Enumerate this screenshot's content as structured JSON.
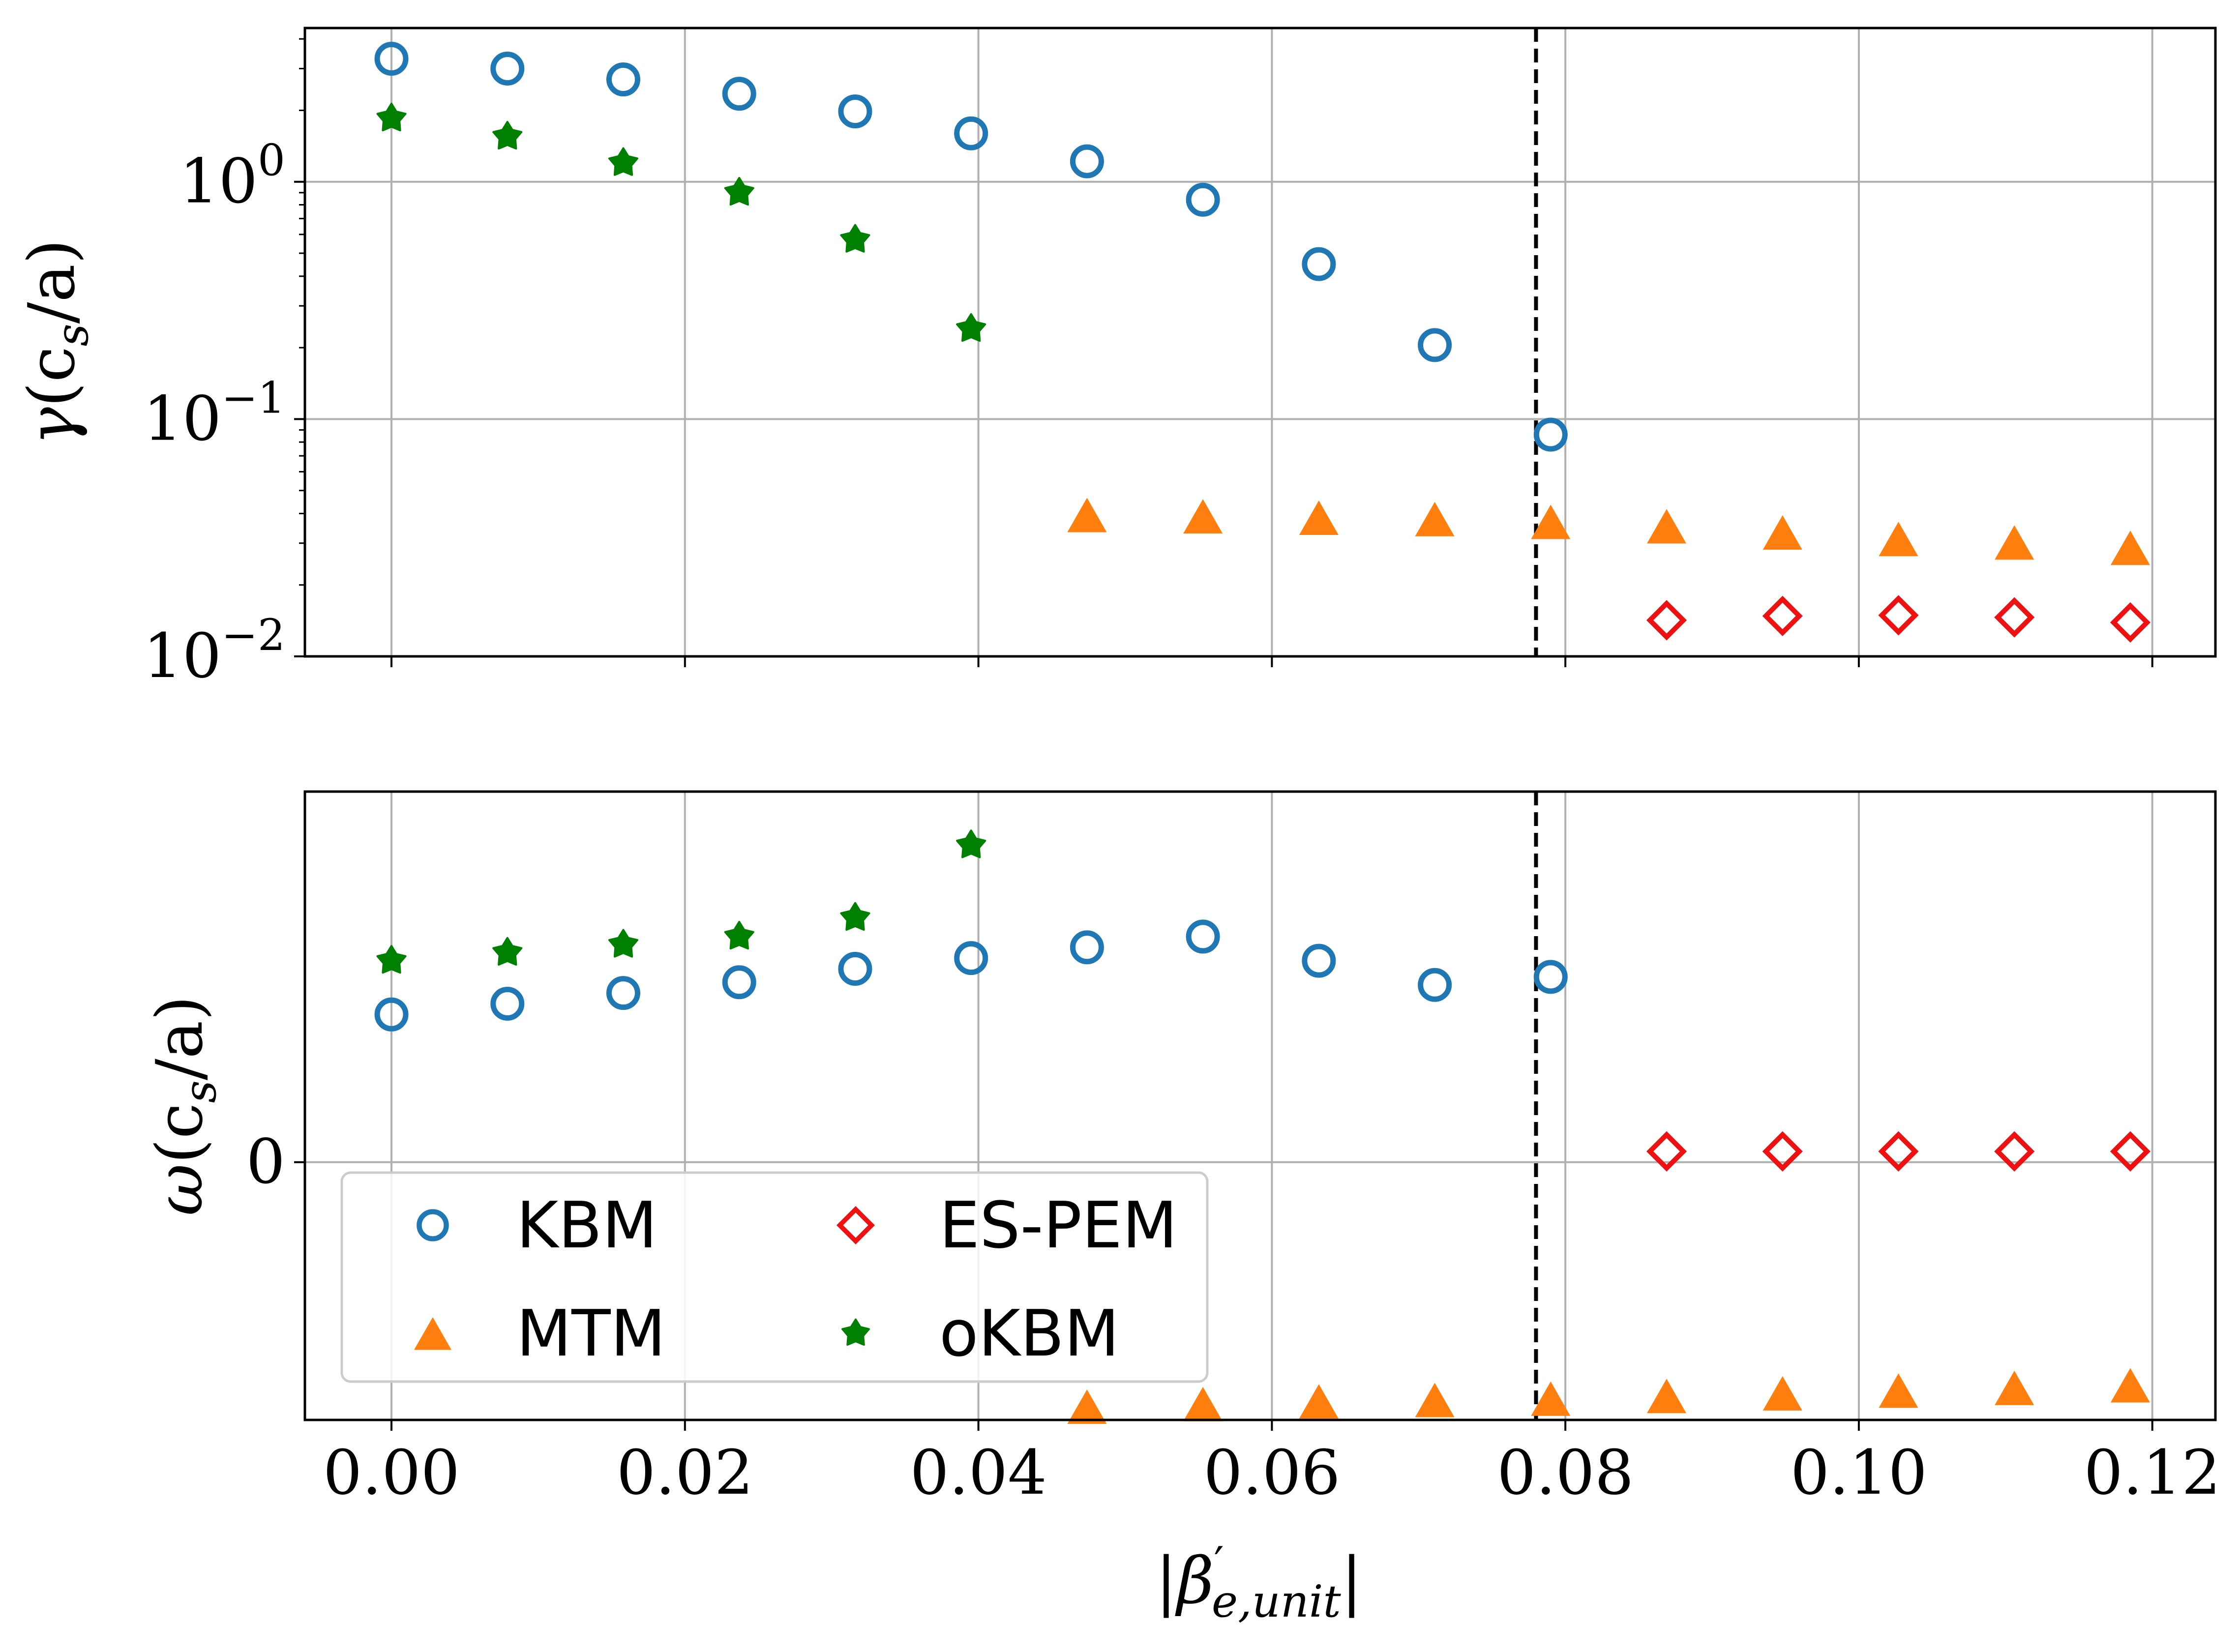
{
  "chart_data": [
    {
      "type": "scatter",
      "panel": "top",
      "yscale": "log",
      "ylabel": "γ(c_s/a)",
      "ylabel_parts": {
        "symbol": "γ",
        "body": "(c",
        "sub": "s",
        "tail": "/a)"
      },
      "xlabel": "",
      "xlim": [
        -0.0059,
        0.1243
      ],
      "ylim_log10": [
        -2.0,
        0.648
      ],
      "ytick_labels": [
        {
          "value": 1.0,
          "base": "10",
          "exp": "0"
        },
        {
          "value": 0.1,
          "base": "10",
          "exp": "−1"
        },
        {
          "value": 0.01,
          "base": "10",
          "exp": "−2"
        }
      ],
      "grid": true,
      "vline_x": 0.078,
      "series": [
        {
          "name": "KBM",
          "marker": "circle-open",
          "color": "#1f77b4",
          "x": [
            0.0,
            0.0079,
            0.0158,
            0.0237,
            0.0316,
            0.0395,
            0.0474,
            0.0553,
            0.0632,
            0.0711,
            0.079
          ],
          "y": [
            3.3,
            3.0,
            2.7,
            2.35,
            1.98,
            1.6,
            1.22,
            0.84,
            0.45,
            0.205,
            0.086
          ]
        },
        {
          "name": "MTM",
          "marker": "triangle",
          "color": "#ff7f0e",
          "x": [
            0.0474,
            0.0553,
            0.0632,
            0.0711,
            0.079,
            0.0869,
            0.0948,
            0.1027,
            0.1106,
            0.1185
          ],
          "y": [
            0.0385,
            0.038,
            0.0375,
            0.037,
            0.036,
            0.0345,
            0.0325,
            0.0305,
            0.0295,
            0.028
          ]
        },
        {
          "name": "ES-PEM",
          "marker": "diamond-open",
          "color": "#ee1111",
          "x": [
            0.0869,
            0.0948,
            0.1027,
            0.1106,
            0.1185
          ],
          "y": [
            0.0142,
            0.0148,
            0.0149,
            0.0146,
            0.0139
          ]
        },
        {
          "name": "oKBM",
          "marker": "star",
          "color": "#008000",
          "x": [
            0.0,
            0.0079,
            0.0158,
            0.0237,
            0.0316,
            0.0395
          ],
          "y": [
            1.85,
            1.55,
            1.2,
            0.9,
            0.57,
            0.24
          ]
        }
      ]
    },
    {
      "type": "scatter",
      "panel": "bottom",
      "yscale": "linear",
      "ylabel": "ω(c_s/a)",
      "ylabel_parts": {
        "symbol": "ω",
        "body": "(c",
        "sub": "s",
        "tail": "/a)"
      },
      "xlabel": "|β′_e,unit|",
      "xlabel_parts": {
        "symbol": "|β",
        "prime": "′",
        "sub": "e,unit",
        "tail": "|"
      },
      "xlim": [
        -0.0059,
        0.1243
      ],
      "ylim": [
        -0.96,
        1.38
      ],
      "ytick_labels": [
        {
          "value": 0,
          "label": "0"
        }
      ],
      "xtick_labels": [
        "0.00",
        "0.02",
        "0.04",
        "0.06",
        "0.08",
        "0.10",
        "0.12"
      ],
      "xticks": [
        0.0,
        0.02,
        0.04,
        0.06,
        0.08,
        0.1,
        0.12
      ],
      "grid": true,
      "vline_x": 0.078,
      "series": [
        {
          "name": "KBM",
          "marker": "circle-open",
          "color": "#1f77b4",
          "x": [
            0.0,
            0.0079,
            0.0158,
            0.0237,
            0.0316,
            0.0395,
            0.0474,
            0.0553,
            0.0632,
            0.0711,
            0.079
          ],
          "y": [
            0.55,
            0.59,
            0.63,
            0.67,
            0.72,
            0.76,
            0.8,
            0.84,
            0.75,
            0.66,
            0.69
          ]
        },
        {
          "name": "MTM",
          "marker": "triangle",
          "color": "#ff7f0e",
          "x": [
            0.0474,
            0.0553,
            0.0632,
            0.0711,
            0.079,
            0.0869,
            0.0948,
            0.1027,
            0.1106,
            0.1185
          ],
          "y": [
            -0.92,
            -0.91,
            -0.9,
            -0.895,
            -0.89,
            -0.88,
            -0.87,
            -0.86,
            -0.85,
            -0.84
          ]
        },
        {
          "name": "ES-PEM",
          "marker": "diamond-open",
          "color": "#ee1111",
          "x": [
            0.0869,
            0.0948,
            0.1027,
            0.1106,
            0.1185
          ],
          "y": [
            0.04,
            0.04,
            0.04,
            0.04,
            0.04
          ]
        },
        {
          "name": "oKBM",
          "marker": "star",
          "color": "#008000",
          "x": [
            0.0,
            0.0079,
            0.0158,
            0.0237,
            0.0316,
            0.0395
          ],
          "y": [
            0.75,
            0.78,
            0.81,
            0.84,
            0.91,
            1.18
          ]
        }
      ]
    }
  ],
  "legend": {
    "location": "lower-left of bottom panel",
    "columns": 2,
    "entries": [
      {
        "label": "KBM",
        "marker": "circle-open",
        "color": "#1f77b4"
      },
      {
        "label": "ES-PEM",
        "marker": "diamond-open",
        "color": "#ee1111"
      },
      {
        "label": "MTM",
        "marker": "triangle",
        "color": "#ff7f0e"
      },
      {
        "label": "oKBM",
        "marker": "star",
        "color": "#008000"
      }
    ]
  }
}
